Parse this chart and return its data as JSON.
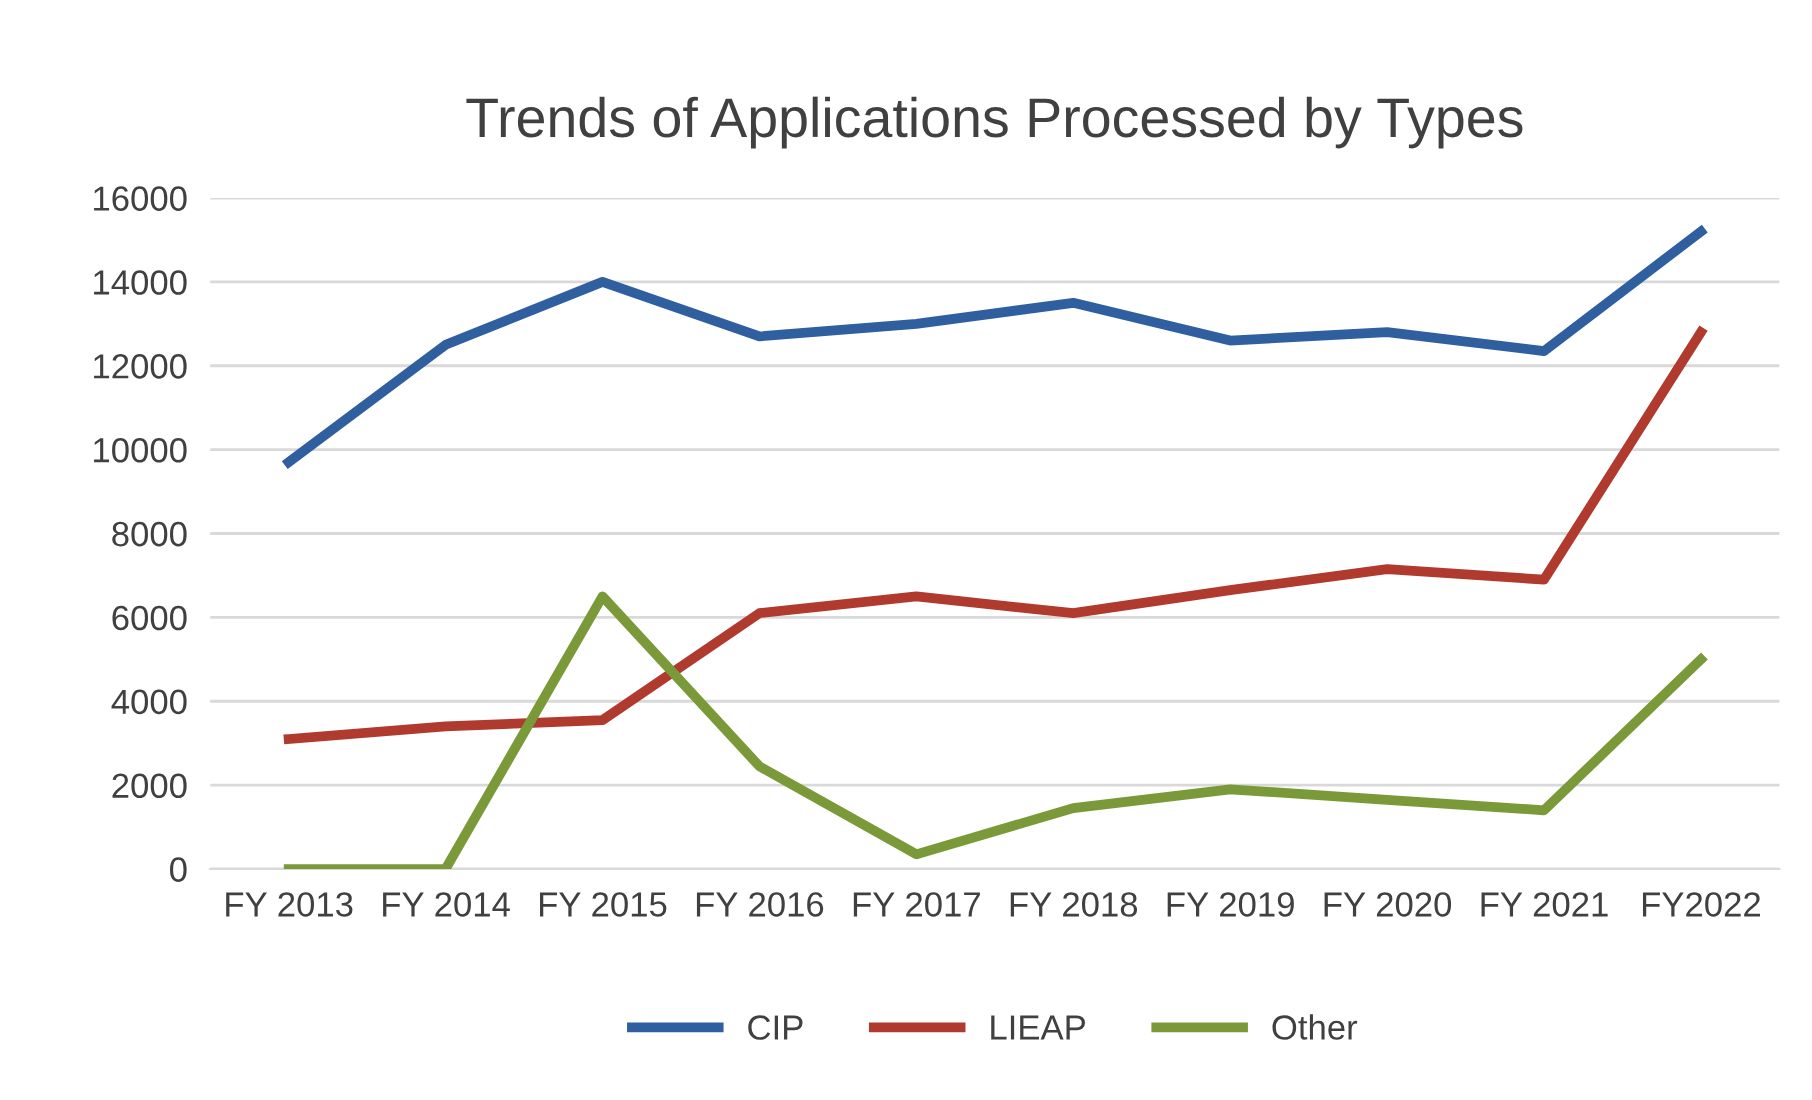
{
  "chart_data": {
    "type": "line",
    "title": "Trends of Applications Processed by Types",
    "categories": [
      "FY 2013",
      "FY 2014",
      "FY 2015",
      "FY 2016",
      "FY 2017",
      "FY 2018",
      "FY 2019",
      "FY 2020",
      "FY 2021",
      "FY2022"
    ],
    "series": [
      {
        "name": "CIP",
        "color": "#2f5f9e",
        "values": [
          9700,
          12500,
          14000,
          12700,
          13000,
          13500,
          12600,
          12800,
          12350,
          15200
        ]
      },
      {
        "name": "LIEAP",
        "color": "#b03a2e",
        "values": [
          3100,
          3400,
          3550,
          6100,
          6500,
          6100,
          6650,
          7150,
          6900,
          12800
        ]
      },
      {
        "name": "Other",
        "color": "#7a9a3a",
        "values": [
          0,
          0,
          6500,
          2450,
          350,
          1450,
          1900,
          1650,
          1400,
          5000
        ]
      }
    ],
    "ylim": [
      0,
      16000
    ],
    "yticks": [
      0,
      2000,
      4000,
      6000,
      8000,
      10000,
      12000,
      14000,
      16000
    ],
    "grid": "y",
    "legend": "bottom",
    "marker": "none",
    "line_style": "solid"
  }
}
